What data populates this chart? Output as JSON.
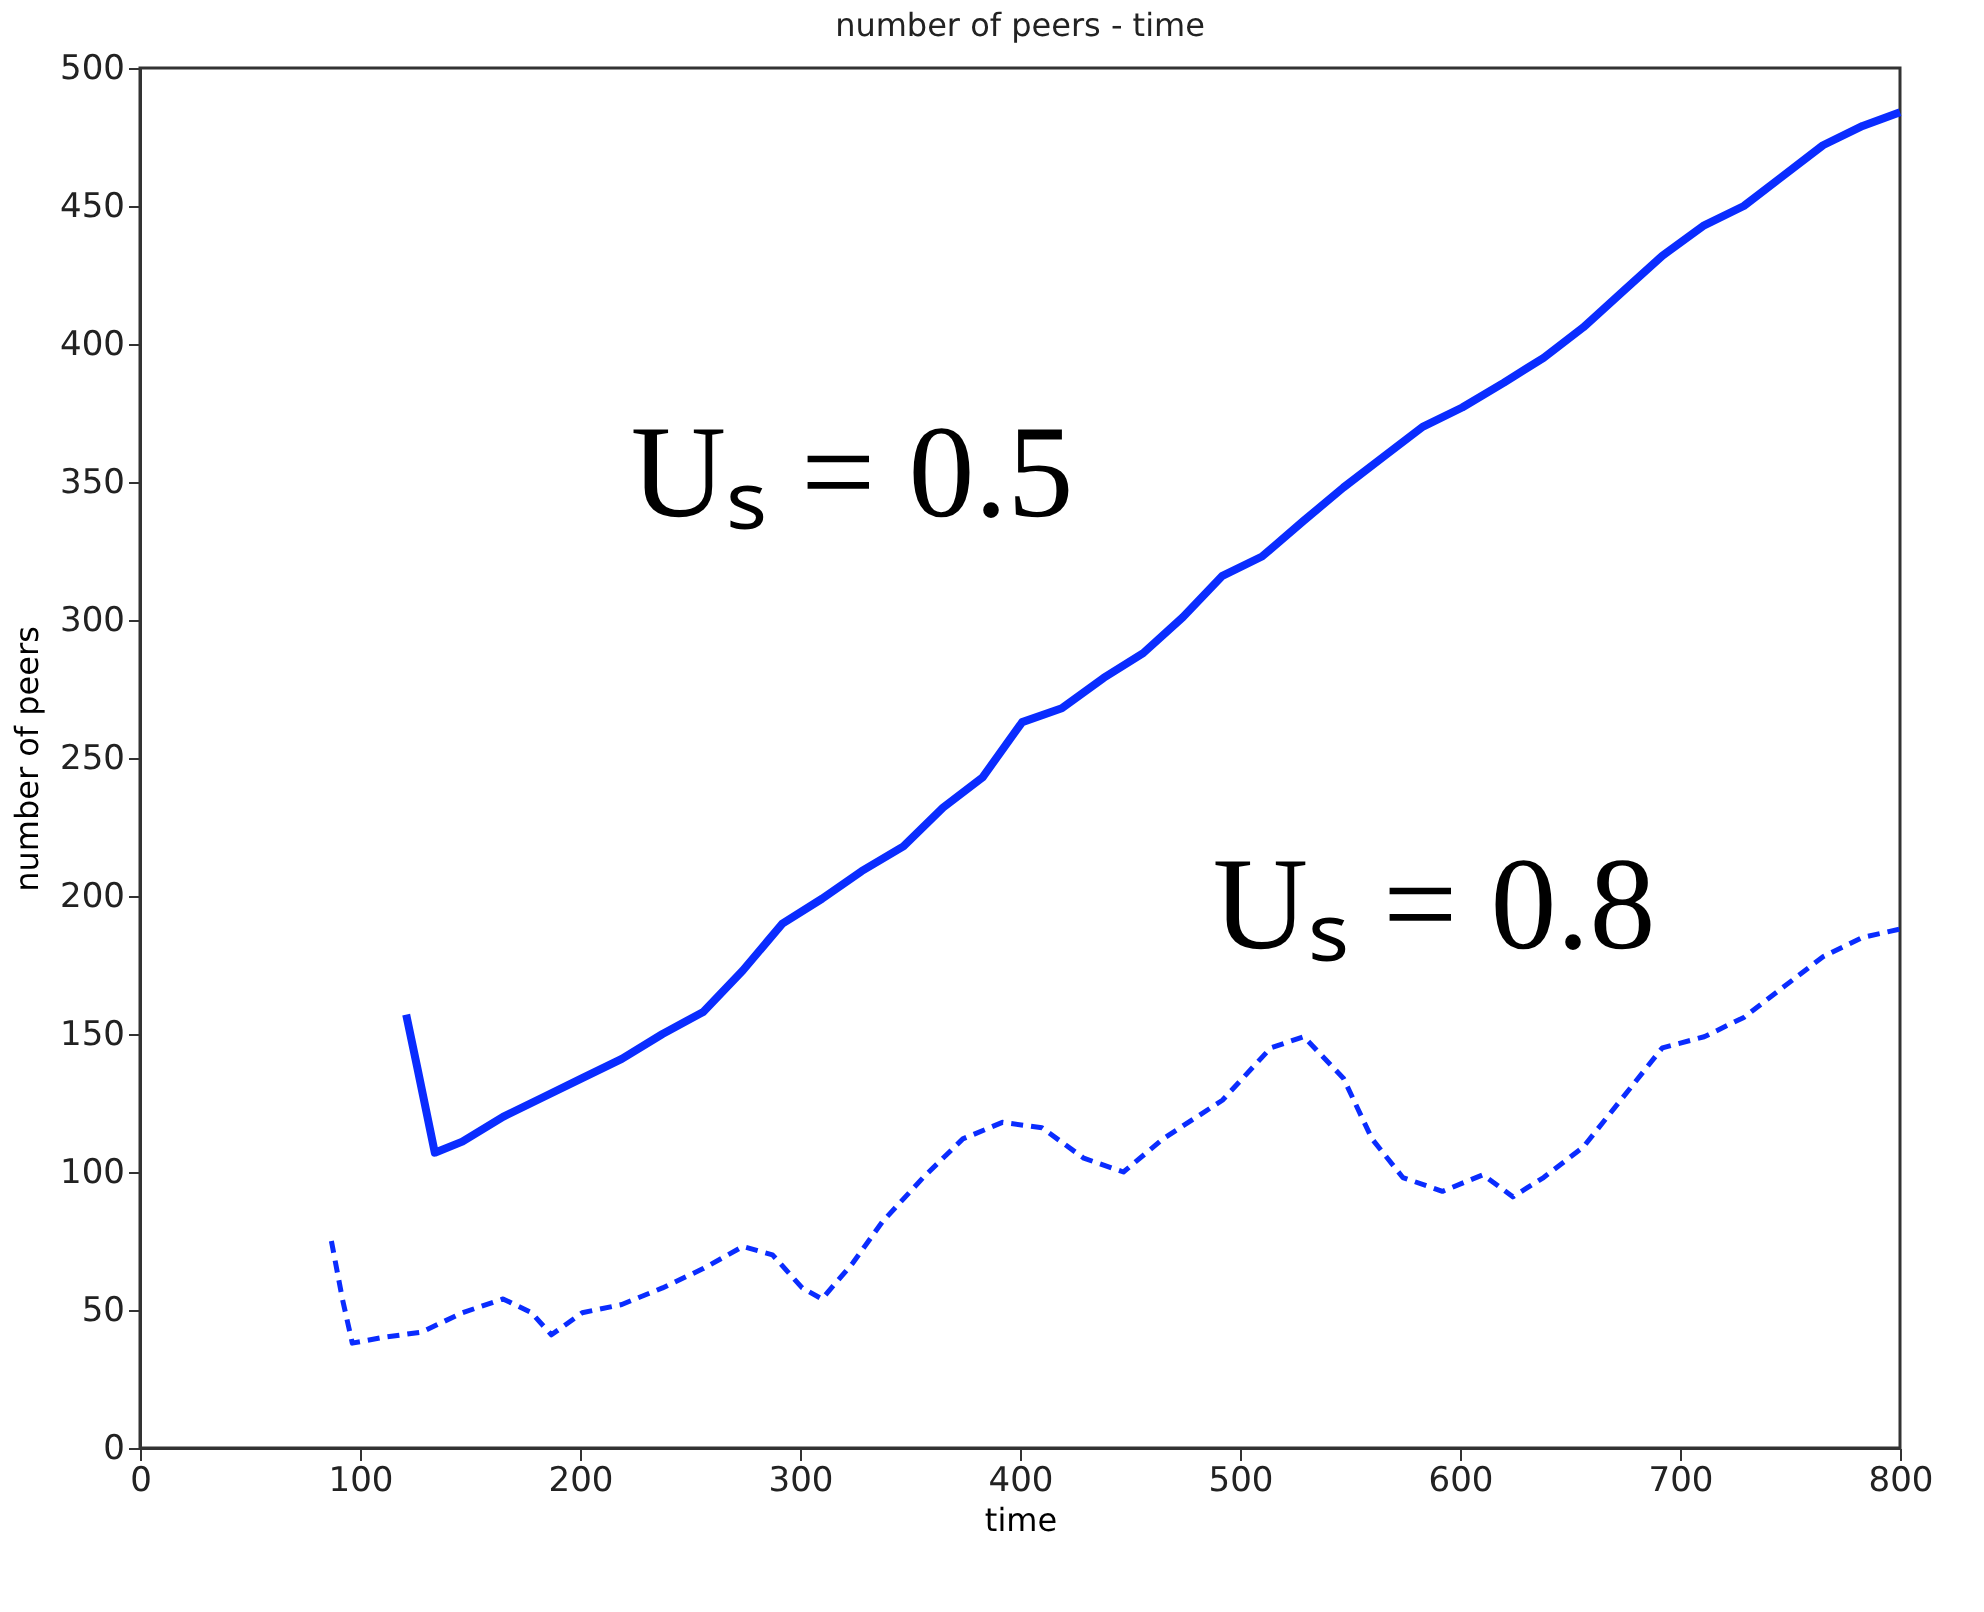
{
  "chart_data": {
    "type": "line",
    "title": "number of peers - time",
    "xlabel": "time",
    "ylabel": "number of peers",
    "xlim": [
      0,
      800
    ],
    "xticks": [
      0,
      100,
      200,
      300,
      400,
      500,
      600,
      700,
      800
    ],
    "ylim": [
      0,
      500
    ],
    "yticks": [
      0,
      50,
      100,
      150,
      200,
      250,
      300,
      350,
      400,
      450,
      500
    ],
    "grid": false,
    "marker": "none",
    "series": [
      {
        "color": "#0a2cff",
        "line_style": "solid",
        "x": [
          121,
          126,
          134,
          146.5,
          165,
          183,
          201,
          219,
          237.5,
          256,
          274,
          292,
          310,
          328,
          347,
          365,
          383,
          401,
          419,
          438,
          456,
          474,
          492,
          510,
          529,
          547,
          565,
          583,
          601,
          620,
          638,
          656,
          674,
          692,
          711,
          729,
          747,
          765,
          783,
          800
        ],
        "values": [
          157,
          138,
          107,
          111,
          120,
          127,
          134,
          141,
          150,
          158,
          173,
          190,
          199,
          209,
          218,
          232,
          243,
          263,
          268,
          279,
          288,
          301,
          316,
          323,
          336,
          348,
          359,
          370,
          377,
          386,
          395,
          406,
          419,
          432,
          443,
          450,
          461,
          472,
          479,
          484
        ]
      },
      {
        "color": "#0a2cff",
        "line_style": "dashed",
        "x": [
          87,
          92,
          96.5,
          110,
          128,
          146.5,
          165,
          178,
          187,
          201,
          219,
          237.5,
          256,
          274,
          287.5,
          301,
          310,
          324,
          337.5,
          356,
          374,
          392,
          410,
          429,
          447,
          465,
          492,
          514,
          529,
          547,
          560,
          574,
          592,
          610.5,
          624,
          638,
          656,
          674,
          692,
          711,
          729,
          747,
          765,
          783,
          800
        ],
        "values": [
          75,
          54,
          38,
          40,
          42,
          49,
          54,
          49,
          41,
          49,
          52,
          58,
          65,
          73,
          70,
          58,
          54,
          67,
          82,
          98,
          112,
          118,
          116,
          105,
          100,
          112,
          126,
          145,
          149,
          134,
          112,
          98,
          93,
          99,
          91,
          98,
          109,
          127,
          145,
          149,
          156,
          167,
          178,
          185,
          188
        ]
      }
    ],
    "annotations": [
      "Uₛ = 0.5",
      "Uₛ = 0.8"
    ]
  }
}
